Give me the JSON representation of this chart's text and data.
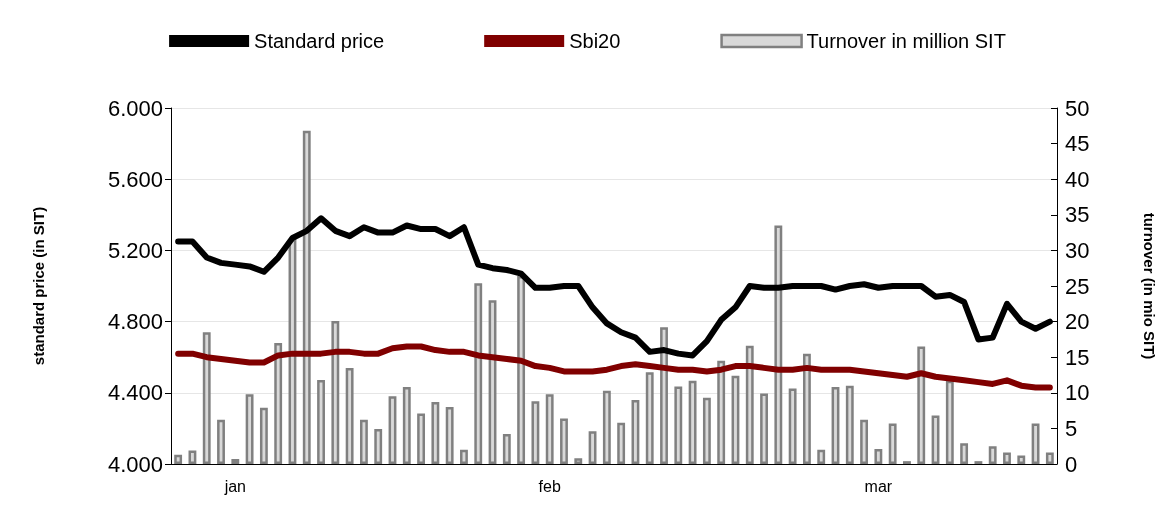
{
  "chart_data": {
    "type": "line",
    "ylabel": "standard price (in SIT)",
    "y2label": "turnover (in mio SIT)",
    "categories": [
      null,
      null,
      null,
      null,
      "jan",
      null,
      null,
      null,
      null,
      null,
      null,
      null,
      null,
      null,
      null,
      null,
      null,
      null,
      null,
      null,
      null,
      null,
      null,
      null,
      null,
      null,
      "feb",
      null,
      null,
      null,
      null,
      null,
      null,
      null,
      null,
      null,
      null,
      null,
      null,
      null,
      null,
      null,
      null,
      null,
      null,
      null,
      null,
      null,
      null,
      "mar",
      null,
      null,
      null,
      null,
      null,
      null,
      null,
      null,
      null,
      null,
      null,
      null
    ],
    "series": [
      {
        "name": "Standard price",
        "color": "#000000",
        "values": [
          5250,
          5250,
          5160,
          5130,
          5120,
          5110,
          5080,
          5160,
          5270,
          5310,
          5380,
          5310,
          5280,
          5330,
          5300,
          5300,
          5340,
          5320,
          5320,
          5280,
          5330,
          5120,
          5100,
          5090,
          5070,
          4990,
          4990,
          5000,
          5000,
          4880,
          4790,
          4740,
          4710,
          4630,
          4640,
          4620,
          4610,
          4690,
          4810,
          4880,
          5000,
          4990,
          4990,
          5000,
          5000,
          5000,
          4980,
          5000,
          5010,
          4990,
          5000,
          5000,
          5000,
          4940,
          4950,
          4910,
          4700,
          4710,
          4900,
          4800,
          4760,
          4800
        ]
      },
      {
        "name": "Sbi20",
        "color": "#800000",
        "values": [
          4620,
          4620,
          4600,
          4590,
          4580,
          4570,
          4570,
          4610,
          4620,
          4620,
          4620,
          4630,
          4630,
          4620,
          4620,
          4650,
          4660,
          4660,
          4640,
          4630,
          4630,
          4610,
          4600,
          4590,
          4580,
          4550,
          4540,
          4520,
          4520,
          4520,
          4530,
          4550,
          4560,
          4550,
          4540,
          4530,
          4530,
          4520,
          4530,
          4550,
          4550,
          4540,
          4530,
          4530,
          4540,
          4530,
          4530,
          4530,
          4520,
          4510,
          4500,
          4490,
          4510,
          4490,
          4480,
          4470,
          4460,
          4450,
          4470,
          4440,
          4430,
          4430
        ]
      },
      {
        "name": "Turnover in million SIT",
        "type": "bar",
        "axis": "y2",
        "color": "#808080",
        "values": [
          1.3,
          1.9,
          18.5,
          6.2,
          0.7,
          9.8,
          7.9,
          17.0,
          31.6,
          46.8,
          11.8,
          20.1,
          13.5,
          6.2,
          4.9,
          9.5,
          10.8,
          7.1,
          8.7,
          8.0,
          2.0,
          25.4,
          23.0,
          4.2,
          26.4,
          8.8,
          9.8,
          6.4,
          0.8,
          4.6,
          10.3,
          5.8,
          9.0,
          12.9,
          19.2,
          10.9,
          11.7,
          9.3,
          14.5,
          12.4,
          16.6,
          9.9,
          33.5,
          10.6,
          15.5,
          2.0,
          10.8,
          11.0,
          6.2,
          2.1,
          5.7,
          0.4,
          16.5,
          6.8,
          11.7,
          2.9,
          0.4,
          2.5,
          1.6,
          1.2,
          5.7,
          1.6
        ]
      }
    ],
    "ylim": [
      4000,
      6000
    ],
    "yticks": [
      {
        "value": 4000,
        "label": "4.000"
      },
      {
        "value": 4400,
        "label": "4.400"
      },
      {
        "value": 4800,
        "label": "4.800"
      },
      {
        "value": 5200,
        "label": "5.200"
      },
      {
        "value": 5600,
        "label": "5.600"
      },
      {
        "value": 6000,
        "label": "6.000"
      }
    ],
    "y2lim": [
      0,
      50
    ],
    "y2ticks": [
      0,
      5,
      10,
      15,
      20,
      25,
      30,
      35,
      40,
      45,
      50
    ],
    "grid": "y",
    "legend": "top",
    "marker": "none",
    "line_style": "solid"
  }
}
